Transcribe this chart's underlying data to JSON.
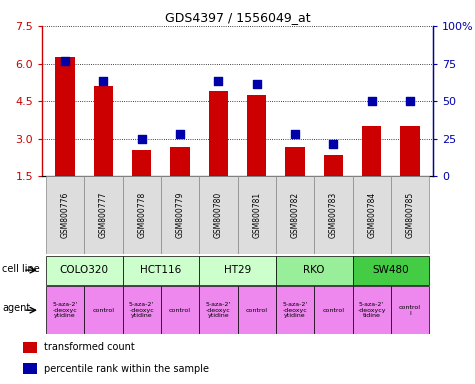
{
  "title": "GDS4397 / 1556049_at",
  "samples": [
    "GSM800776",
    "GSM800777",
    "GSM800778",
    "GSM800779",
    "GSM800780",
    "GSM800781",
    "GSM800782",
    "GSM800783",
    "GSM800784",
    "GSM800785"
  ],
  "bar_values": [
    6.25,
    5.1,
    2.55,
    2.65,
    4.9,
    4.75,
    2.65,
    2.35,
    3.5,
    3.5
  ],
  "scatter_left_vals": [
    6.1,
    5.3,
    3.0,
    3.2,
    5.3,
    5.2,
    3.2,
    2.8,
    4.5,
    4.5
  ],
  "bar_color": "#cc0000",
  "scatter_color": "#0000aa",
  "ylim_left": [
    1.5,
    7.5
  ],
  "yticks_left": [
    1.5,
    3.0,
    4.5,
    6.0,
    7.5
  ],
  "ylim_right": [
    0,
    100
  ],
  "yticks_right": [
    0,
    25,
    50,
    75,
    100
  ],
  "ytick_labels_right": [
    "0",
    "25",
    "50",
    "75",
    "100%"
  ],
  "cell_lines": [
    {
      "name": "COLO320",
      "start": 0,
      "end": 2,
      "color": "#ccffcc"
    },
    {
      "name": "HCT116",
      "start": 2,
      "end": 4,
      "color": "#ccffcc"
    },
    {
      "name": "HT29",
      "start": 4,
      "end": 6,
      "color": "#ccffcc"
    },
    {
      "name": "RKO",
      "start": 6,
      "end": 8,
      "color": "#99ee99"
    },
    {
      "name": "SW480",
      "start": 8,
      "end": 10,
      "color": "#44cc44"
    }
  ],
  "agents": [
    {
      "name": "5-aza-2'\n-deoxyc\nytidine",
      "color": "#ee88ee"
    },
    {
      "name": "control",
      "color": "#ee88ee"
    },
    {
      "name": "5-aza-2'\n-deoxyc\nytidine",
      "color": "#ee88ee"
    },
    {
      "name": "control",
      "color": "#ee88ee"
    },
    {
      "name": "5-aza-2'\n-deoxyc\nytidine",
      "color": "#ee88ee"
    },
    {
      "name": "control",
      "color": "#ee88ee"
    },
    {
      "name": "5-aza-2'\n-deoxyc\nytidine",
      "color": "#ee88ee"
    },
    {
      "name": "control",
      "color": "#ee88ee"
    },
    {
      "name": "5-aza-2'\n-deoxycy\ntidine",
      "color": "#ee88ee"
    },
    {
      "name": "control\nl",
      "color": "#ee88ee"
    }
  ],
  "legend_items": [
    {
      "label": "transformed count",
      "color": "#cc0000"
    },
    {
      "label": "percentile rank within the sample",
      "color": "#0000aa"
    }
  ],
  "bar_bottom": 1.5,
  "bar_width": 0.5,
  "scatter_marker": "s",
  "scatter_size": 30,
  "sample_box_color": "#dddddd",
  "border_color": "#888888"
}
